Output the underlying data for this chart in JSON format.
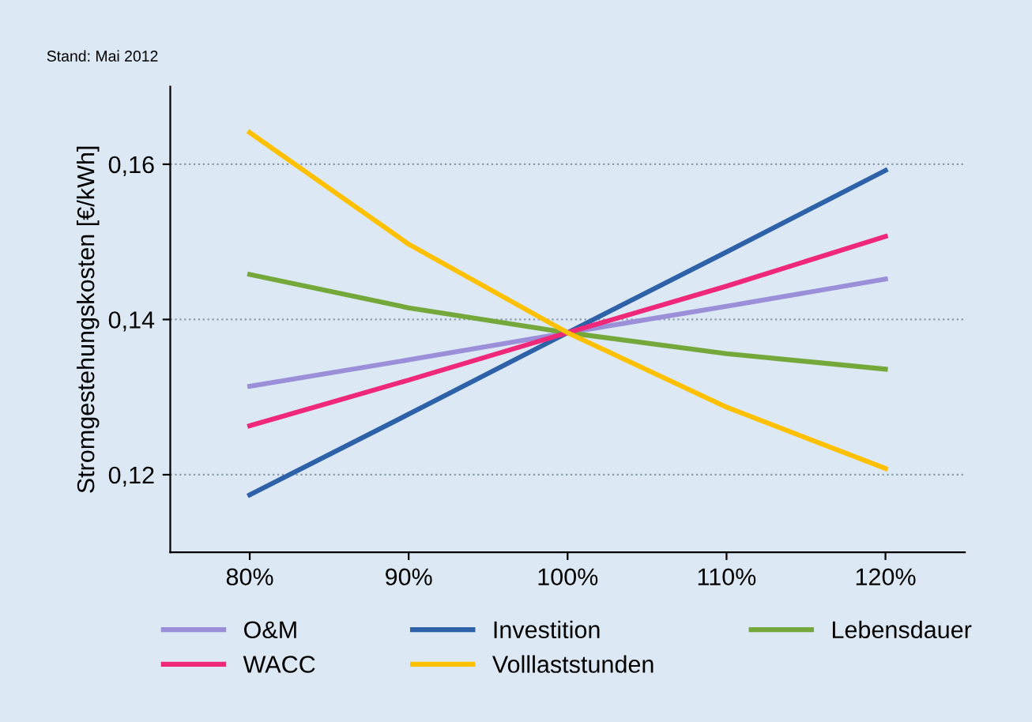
{
  "chart_data": {
    "type": "line",
    "ylabel": "Stromgestehungskosten [€/kWh]",
    "annotations": [
      "Stand: Mai 2012"
    ],
    "x": [
      80,
      90,
      100,
      110,
      120
    ],
    "xlim": [
      75,
      125
    ],
    "xticks": [
      {
        "value": 80,
        "label": "80%"
      },
      {
        "value": 90,
        "label": "90%"
      },
      {
        "value": 100,
        "label": "100%"
      },
      {
        "value": 110,
        "label": "110%"
      },
      {
        "value": 120,
        "label": "120%"
      }
    ],
    "ylim": [
      0.11,
      0.17
    ],
    "yticks": [
      {
        "value": 0.12,
        "label": "0,12"
      },
      {
        "value": 0.14,
        "label": "0,14"
      },
      {
        "value": 0.16,
        "label": "0,16"
      }
    ],
    "grid": "y",
    "legend": "bottom",
    "marker": "none",
    "line_style": "solid",
    "series": [
      {
        "name": "O&M",
        "color": "#9a8fd8",
        "values": [
          0.1314,
          0.1348,
          0.1383,
          0.1417,
          0.1452
        ]
      },
      {
        "name": "Investition",
        "color": "#2e62a8",
        "values": [
          0.1174,
          0.1278,
          0.1383,
          0.1487,
          0.1592
        ]
      },
      {
        "name": "Lebensdauer",
        "color": "#74a83a",
        "values": [
          0.1458,
          0.1415,
          0.1383,
          0.1356,
          0.1336
        ]
      },
      {
        "name": "WACC",
        "color": "#f0287a",
        "values": [
          0.1263,
          0.1322,
          0.1383,
          0.1443,
          0.1507
        ]
      },
      {
        "name": "Volllaststunden",
        "color": "#ffc000",
        "values": [
          0.1641,
          0.1497,
          0.1383,
          0.1287,
          0.1208
        ]
      }
    ]
  }
}
